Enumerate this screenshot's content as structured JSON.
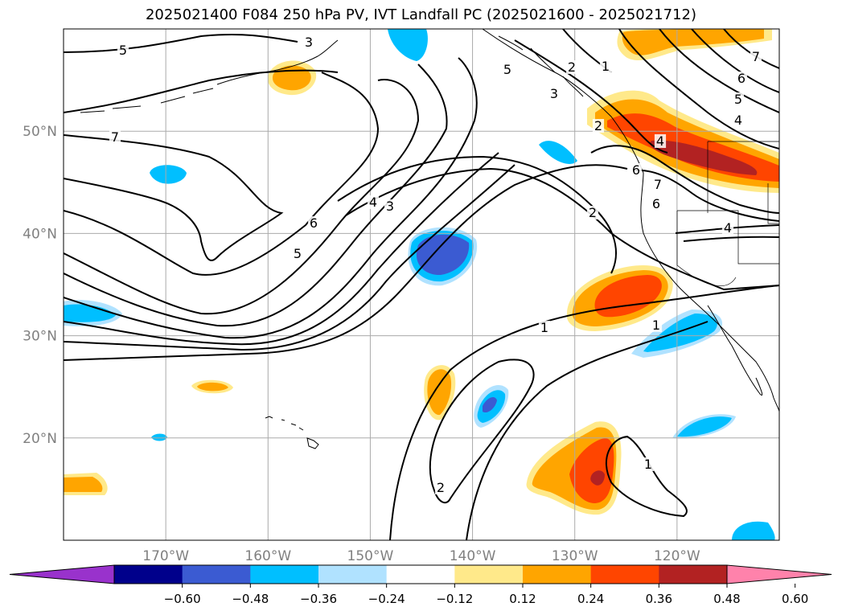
{
  "title": "2025021400 F084 250 hPa PV, IVT Landfall PC (2025021600 - 2025021712)",
  "map": {
    "lon_range": [
      -180,
      -110
    ],
    "lat_range": [
      10,
      60
    ],
    "lat_labels": [
      {
        "lat": 50,
        "text": "50°N"
      },
      {
        "lat": 40,
        "text": "40°N"
      },
      {
        "lat": 30,
        "text": "30°N"
      },
      {
        "lat": 20,
        "text": "20°N"
      }
    ],
    "lon_labels": [
      {
        "lon": -170,
        "text": "170°W"
      },
      {
        "lon": -160,
        "text": "160°W"
      },
      {
        "lon": -150,
        "text": "150°W"
      },
      {
        "lon": -140,
        "text": "140°W"
      },
      {
        "lon": -130,
        "text": "130°W"
      },
      {
        "lon": -120,
        "text": "120°W"
      }
    ],
    "grid_color": "#aaaaaa",
    "label_color": "#808080"
  },
  "contours": {
    "field": "250 hPa PV",
    "labels": [
      "5",
      "3",
      "7",
      "6",
      "4",
      "3",
      "6",
      "5",
      "2",
      "1",
      "1",
      "2",
      "1",
      "1",
      "2",
      "5",
      "7",
      "6",
      "5",
      "4",
      "4",
      "4",
      "7",
      "6",
      "2",
      "3"
    ]
  },
  "shading": {
    "field": "IVT Landfall PC",
    "colors": {
      "neg_0.60": "#9932cc",
      "neg_0.48": "#00008b",
      "neg_0.36": "#3b5bd2",
      "neg_0.24": "#00bfff",
      "neg_0.12": "#b0e2ff",
      "pos_0.12": "#ffe98a",
      "pos_0.24": "#ffa500",
      "pos_0.36": "#ff4500",
      "pos_0.48": "#b22222",
      "pos_0.60": "#ff82ab"
    }
  },
  "colorbar": {
    "colors": [
      "#9932cc",
      "#00008b",
      "#3b5bd2",
      "#00bfff",
      "#b0e2ff",
      "#ffffff",
      "#ffe98a",
      "#ffa500",
      "#ff4500",
      "#b22222",
      "#ff82ab"
    ],
    "tick_labels": [
      "−0.60",
      "−0.48",
      "−0.36",
      "−0.24",
      "−0.12",
      "0.12",
      "0.24",
      "0.36",
      "0.48",
      "0.60"
    ]
  }
}
